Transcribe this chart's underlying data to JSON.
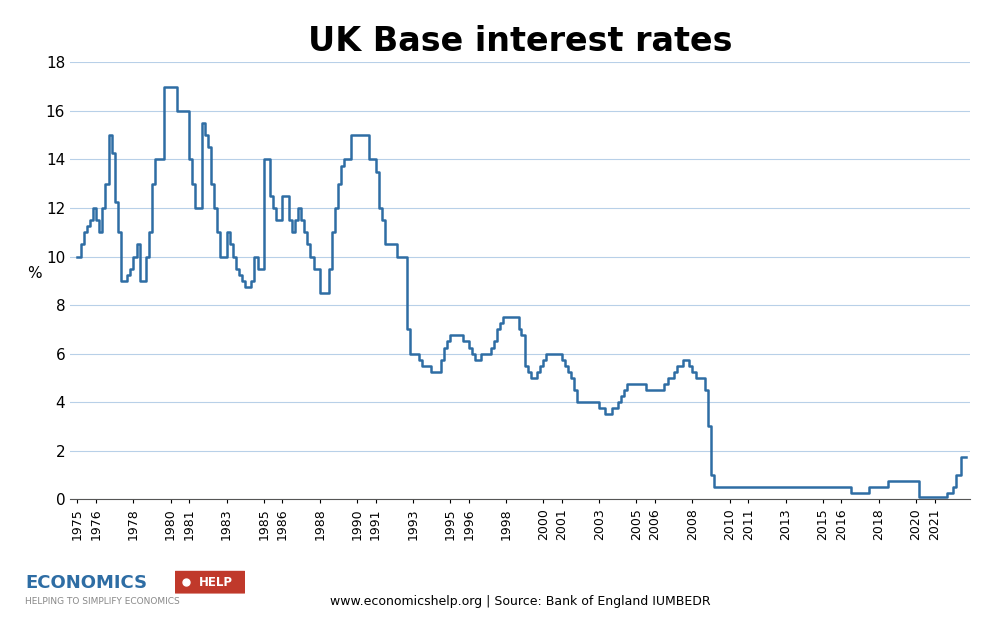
{
  "title": "UK Base interest rates",
  "ylabel": "%",
  "source_text": "www.economicshelp.org | Source: Bank of England IUMBEDR",
  "line_color": "#2e6da4",
  "background_color": "#ffffff",
  "grid_color": "#b8d0e8",
  "ylim": [
    0,
    18
  ],
  "yticks": [
    0,
    2,
    4,
    6,
    8,
    10,
    12,
    14,
    16,
    18
  ],
  "title_fontsize": 24,
  "xlim_min": 1974.6,
  "xlim_max": 2022.9,
  "data": [
    [
      1975.0,
      10.0
    ],
    [
      1975.17,
      10.5
    ],
    [
      1975.33,
      11.0
    ],
    [
      1975.5,
      11.25
    ],
    [
      1975.67,
      11.5
    ],
    [
      1975.83,
      12.0
    ],
    [
      1976.0,
      11.5
    ],
    [
      1976.17,
      11.0
    ],
    [
      1976.33,
      12.0
    ],
    [
      1976.5,
      13.0
    ],
    [
      1976.67,
      15.0
    ],
    [
      1976.83,
      14.25
    ],
    [
      1977.0,
      12.25
    ],
    [
      1977.17,
      11.0
    ],
    [
      1977.33,
      9.0
    ],
    [
      1977.5,
      9.0
    ],
    [
      1977.67,
      9.25
    ],
    [
      1977.83,
      9.5
    ],
    [
      1978.0,
      10.0
    ],
    [
      1978.17,
      10.5
    ],
    [
      1978.33,
      9.0
    ],
    [
      1978.5,
      9.0
    ],
    [
      1978.67,
      10.0
    ],
    [
      1978.83,
      11.0
    ],
    [
      1979.0,
      13.0
    ],
    [
      1979.17,
      14.0
    ],
    [
      1979.33,
      14.0
    ],
    [
      1979.5,
      14.0
    ],
    [
      1979.67,
      17.0
    ],
    [
      1979.83,
      17.0
    ],
    [
      1980.0,
      17.0
    ],
    [
      1980.17,
      17.0
    ],
    [
      1980.33,
      16.0
    ],
    [
      1980.5,
      16.0
    ],
    [
      1980.67,
      16.0
    ],
    [
      1980.83,
      16.0
    ],
    [
      1981.0,
      14.0
    ],
    [
      1981.17,
      13.0
    ],
    [
      1981.33,
      12.0
    ],
    [
      1981.5,
      12.0
    ],
    [
      1981.67,
      15.5
    ],
    [
      1981.83,
      15.0
    ],
    [
      1982.0,
      14.5
    ],
    [
      1982.17,
      13.0
    ],
    [
      1982.33,
      12.0
    ],
    [
      1982.5,
      11.0
    ],
    [
      1982.67,
      10.0
    ],
    [
      1982.83,
      10.0
    ],
    [
      1983.0,
      11.0
    ],
    [
      1983.17,
      10.5
    ],
    [
      1983.33,
      10.0
    ],
    [
      1983.5,
      9.5
    ],
    [
      1983.67,
      9.25
    ],
    [
      1983.83,
      9.0
    ],
    [
      1984.0,
      8.75
    ],
    [
      1984.17,
      8.75
    ],
    [
      1984.33,
      9.0
    ],
    [
      1984.5,
      10.0
    ],
    [
      1984.67,
      9.5
    ],
    [
      1984.83,
      9.5
    ],
    [
      1985.0,
      14.0
    ],
    [
      1985.17,
      14.0
    ],
    [
      1985.33,
      12.5
    ],
    [
      1985.5,
      12.0
    ],
    [
      1985.67,
      11.5
    ],
    [
      1985.83,
      11.5
    ],
    [
      1986.0,
      12.5
    ],
    [
      1986.17,
      12.5
    ],
    [
      1986.33,
      11.5
    ],
    [
      1986.5,
      11.0
    ],
    [
      1986.67,
      11.5
    ],
    [
      1986.83,
      12.0
    ],
    [
      1987.0,
      11.5
    ],
    [
      1987.17,
      11.0
    ],
    [
      1987.33,
      10.5
    ],
    [
      1987.5,
      10.0
    ],
    [
      1987.67,
      9.5
    ],
    [
      1987.83,
      9.5
    ],
    [
      1988.0,
      8.5
    ],
    [
      1988.17,
      8.5
    ],
    [
      1988.33,
      8.5
    ],
    [
      1988.5,
      9.5
    ],
    [
      1988.67,
      11.0
    ],
    [
      1988.83,
      12.0
    ],
    [
      1989.0,
      13.0
    ],
    [
      1989.17,
      13.75
    ],
    [
      1989.33,
      14.0
    ],
    [
      1989.5,
      14.0
    ],
    [
      1989.67,
      15.0
    ],
    [
      1989.83,
      15.0
    ],
    [
      1990.0,
      15.0
    ],
    [
      1990.17,
      15.0
    ],
    [
      1990.33,
      15.0
    ],
    [
      1990.5,
      15.0
    ],
    [
      1990.67,
      14.0
    ],
    [
      1990.83,
      14.0
    ],
    [
      1991.0,
      13.5
    ],
    [
      1991.17,
      12.0
    ],
    [
      1991.33,
      11.5
    ],
    [
      1991.5,
      10.5
    ],
    [
      1991.67,
      10.5
    ],
    [
      1991.83,
      10.5
    ],
    [
      1992.0,
      10.5
    ],
    [
      1992.17,
      10.0
    ],
    [
      1992.33,
      10.0
    ],
    [
      1992.5,
      10.0
    ],
    [
      1992.67,
      7.0
    ],
    [
      1992.83,
      6.0
    ],
    [
      1993.0,
      6.0
    ],
    [
      1993.17,
      6.0
    ],
    [
      1993.33,
      5.75
    ],
    [
      1993.5,
      5.5
    ],
    [
      1993.67,
      5.5
    ],
    [
      1993.83,
      5.5
    ],
    [
      1994.0,
      5.25
    ],
    [
      1994.17,
      5.25
    ],
    [
      1994.33,
      5.25
    ],
    [
      1994.5,
      5.75
    ],
    [
      1994.67,
      6.25
    ],
    [
      1994.83,
      6.5
    ],
    [
      1995.0,
      6.75
    ],
    [
      1995.17,
      6.75
    ],
    [
      1995.33,
      6.75
    ],
    [
      1995.5,
      6.75
    ],
    [
      1995.67,
      6.5
    ],
    [
      1995.83,
      6.5
    ],
    [
      1996.0,
      6.25
    ],
    [
      1996.17,
      6.0
    ],
    [
      1996.33,
      5.75
    ],
    [
      1996.5,
      5.75
    ],
    [
      1996.67,
      6.0
    ],
    [
      1996.83,
      6.0
    ],
    [
      1997.0,
      6.0
    ],
    [
      1997.17,
      6.25
    ],
    [
      1997.33,
      6.5
    ],
    [
      1997.5,
      7.0
    ],
    [
      1997.67,
      7.25
    ],
    [
      1997.83,
      7.5
    ],
    [
      1998.0,
      7.5
    ],
    [
      1998.17,
      7.5
    ],
    [
      1998.33,
      7.5
    ],
    [
      1998.5,
      7.5
    ],
    [
      1998.67,
      7.0
    ],
    [
      1998.83,
      6.75
    ],
    [
      1999.0,
      5.5
    ],
    [
      1999.17,
      5.25
    ],
    [
      1999.33,
      5.0
    ],
    [
      1999.5,
      5.0
    ],
    [
      1999.67,
      5.25
    ],
    [
      1999.83,
      5.5
    ],
    [
      2000.0,
      5.75
    ],
    [
      2000.17,
      6.0
    ],
    [
      2000.33,
      6.0
    ],
    [
      2000.5,
      6.0
    ],
    [
      2000.67,
      6.0
    ],
    [
      2000.83,
      6.0
    ],
    [
      2001.0,
      5.75
    ],
    [
      2001.17,
      5.5
    ],
    [
      2001.33,
      5.25
    ],
    [
      2001.5,
      5.0
    ],
    [
      2001.67,
      4.5
    ],
    [
      2001.83,
      4.0
    ],
    [
      2002.0,
      4.0
    ],
    [
      2002.25,
      4.0
    ],
    [
      2002.5,
      4.0
    ],
    [
      2002.75,
      4.0
    ],
    [
      2003.0,
      3.75
    ],
    [
      2003.17,
      3.75
    ],
    [
      2003.33,
      3.5
    ],
    [
      2003.5,
      3.5
    ],
    [
      2003.67,
      3.75
    ],
    [
      2003.83,
      3.75
    ],
    [
      2004.0,
      4.0
    ],
    [
      2004.17,
      4.25
    ],
    [
      2004.33,
      4.5
    ],
    [
      2004.5,
      4.75
    ],
    [
      2004.67,
      4.75
    ],
    [
      2004.83,
      4.75
    ],
    [
      2005.0,
      4.75
    ],
    [
      2005.17,
      4.75
    ],
    [
      2005.33,
      4.75
    ],
    [
      2005.5,
      4.5
    ],
    [
      2005.67,
      4.5
    ],
    [
      2005.83,
      4.5
    ],
    [
      2006.0,
      4.5
    ],
    [
      2006.17,
      4.5
    ],
    [
      2006.33,
      4.5
    ],
    [
      2006.5,
      4.75
    ],
    [
      2006.67,
      5.0
    ],
    [
      2006.83,
      5.0
    ],
    [
      2007.0,
      5.25
    ],
    [
      2007.17,
      5.5
    ],
    [
      2007.33,
      5.5
    ],
    [
      2007.5,
      5.75
    ],
    [
      2007.67,
      5.75
    ],
    [
      2007.83,
      5.5
    ],
    [
      2008.0,
      5.25
    ],
    [
      2008.17,
      5.0
    ],
    [
      2008.33,
      5.0
    ],
    [
      2008.5,
      5.0
    ],
    [
      2008.67,
      4.5
    ],
    [
      2008.83,
      3.0
    ],
    [
      2009.0,
      1.0
    ],
    [
      2009.17,
      0.5
    ],
    [
      2009.33,
      0.5
    ],
    [
      2009.5,
      0.5
    ],
    [
      2009.67,
      0.5
    ],
    [
      2009.83,
      0.5
    ],
    [
      2010.0,
      0.5
    ],
    [
      2011.0,
      0.5
    ],
    [
      2012.0,
      0.5
    ],
    [
      2013.0,
      0.5
    ],
    [
      2014.0,
      0.5
    ],
    [
      2015.0,
      0.5
    ],
    [
      2016.0,
      0.5
    ],
    [
      2016.5,
      0.25
    ],
    [
      2017.0,
      0.25
    ],
    [
      2017.5,
      0.5
    ],
    [
      2018.0,
      0.5
    ],
    [
      2018.5,
      0.75
    ],
    [
      2019.0,
      0.75
    ],
    [
      2019.5,
      0.75
    ],
    [
      2020.0,
      0.75
    ],
    [
      2020.17,
      0.1
    ],
    [
      2020.5,
      0.1
    ],
    [
      2021.0,
      0.1
    ],
    [
      2021.67,
      0.25
    ],
    [
      2021.83,
      0.25
    ],
    [
      2022.0,
      0.5
    ],
    [
      2022.17,
      1.0
    ],
    [
      2022.42,
      1.75
    ],
    [
      2022.67,
      1.75
    ]
  ],
  "xtick_labels": [
    "1975",
    "1976",
    "1978",
    "1980",
    "1981",
    "1983",
    "1985",
    "1986",
    "1988",
    "1990",
    "1991",
    "1993",
    "1995",
    "1996",
    "1998",
    "2000",
    "2001",
    "2003",
    "2005",
    "2006",
    "2008",
    "2010",
    "2011",
    "2013",
    "2015",
    "2016",
    "2018",
    "2020",
    "2021"
  ],
  "xtick_positions": [
    1975,
    1976,
    1978,
    1980,
    1981,
    1983,
    1985,
    1986,
    1988,
    1990,
    1991,
    1993,
    1995,
    1996,
    1998,
    2000,
    2001,
    2003,
    2005,
    2006,
    2008,
    2010,
    2011,
    2013,
    2015,
    2016,
    2018,
    2020,
    2021
  ],
  "logo_economics_color": "#2e6da4",
  "logo_help_bg": "#c0392b",
  "logo_help_text": "white",
  "logo_sub_text": "HELPING TO SIMPLIFY ECONOMICS",
  "logo_sub_color": "#888888"
}
